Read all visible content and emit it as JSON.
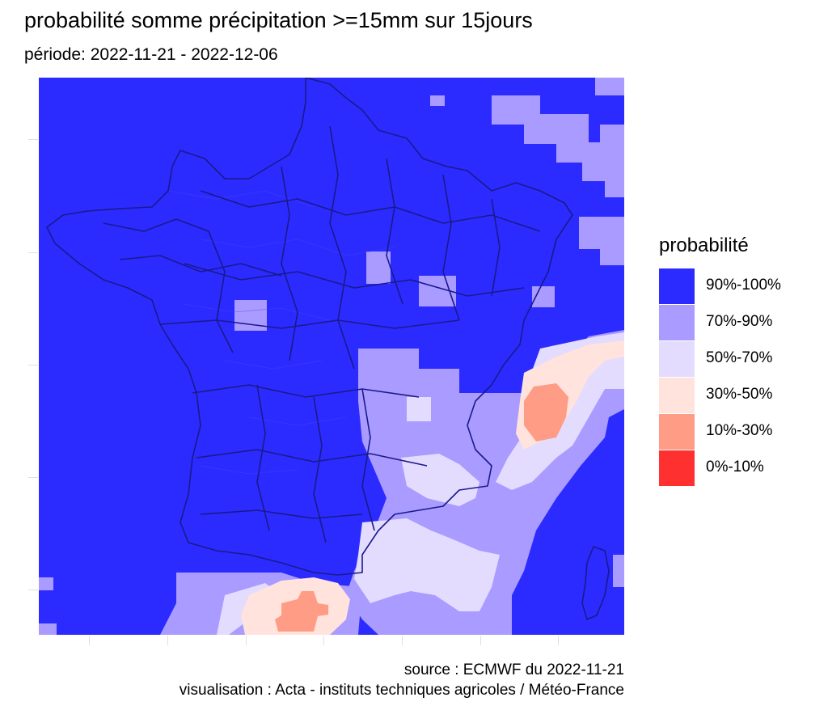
{
  "header": {
    "title": "probabilité somme précipitation >=15mm sur 15jours",
    "subtitle": "période: 2022-11-21 - 2022-12-06"
  },
  "legend": {
    "title": "probabilité",
    "items": [
      {
        "label": "90%-100%",
        "color": "#2b2bff"
      },
      {
        "label": "70%-90%",
        "color": "#a99bff"
      },
      {
        "label": "50%-70%",
        "color": "#e3dcff"
      },
      {
        "label": "30%-50%",
        "color": "#ffe3dc"
      },
      {
        "label": "10%-30%",
        "color": "#ff9c86"
      },
      {
        "label": "0%-10%",
        "color": "#ff3030"
      }
    ]
  },
  "map_style": {
    "boundary_color": "#1a1a8c",
    "grid_color": "#4747ff"
  },
  "caption": {
    "source": "source : ECMWF du 2022-11-21",
    "visualisation": "visualisation : Acta - instituts techniques agricoles / Météo-France"
  }
}
